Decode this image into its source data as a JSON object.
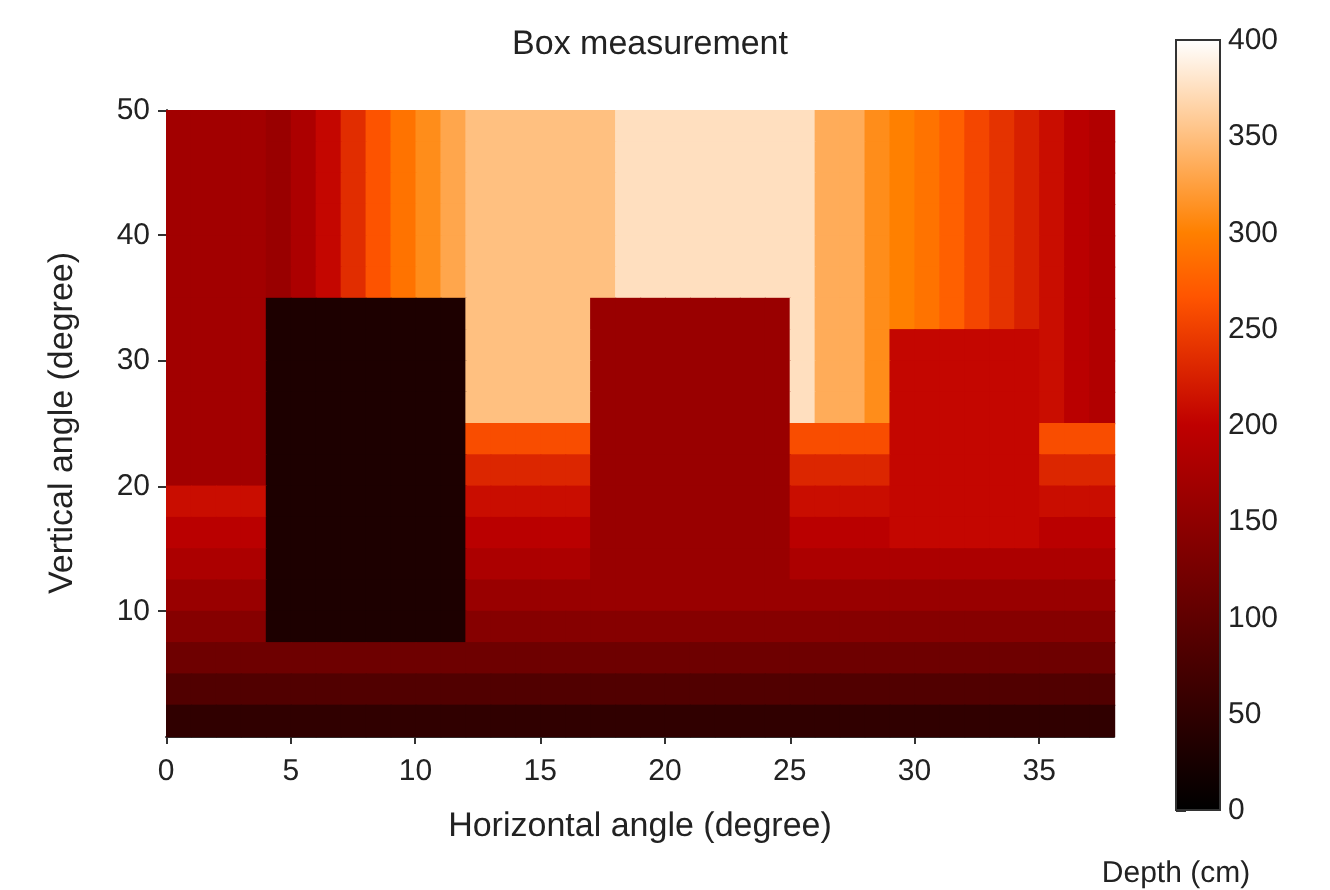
{
  "chart_data": {
    "type": "heatmap",
    "title": "Box measurement",
    "xlabel": "Horizontal angle (degree)",
    "ylabel": "Vertical angle (degree)",
    "clabel": "Depth (cm)",
    "xlim": [
      0,
      38
    ],
    "ylim": [
      0,
      50
    ],
    "xticks": [
      0,
      5,
      10,
      15,
      20,
      25,
      30,
      35
    ],
    "yticks": [
      10,
      20,
      30,
      40,
      50
    ],
    "clim": [
      0,
      400
    ],
    "cticks": [
      0,
      50,
      100,
      150,
      200,
      250,
      300,
      350,
      400
    ],
    "cells": [
      [
        170,
        170,
        170,
        170,
        160,
        180,
        205,
        235,
        265,
        290,
        310,
        330,
        350,
        350,
        350,
        350,
        350,
        350,
        375,
        375,
        375,
        375,
        375,
        375,
        375,
        375,
        335,
        335,
        310,
        300,
        290,
        275,
        255,
        240,
        225,
        210,
        195,
        185
      ],
      [
        170,
        170,
        170,
        170,
        160,
        180,
        205,
        235,
        265,
        290,
        310,
        330,
        350,
        350,
        350,
        350,
        350,
        350,
        375,
        375,
        375,
        375,
        375,
        375,
        375,
        375,
        335,
        335,
        310,
        300,
        290,
        275,
        255,
        240,
        225,
        210,
        195,
        185
      ],
      [
        170,
        170,
        170,
        170,
        160,
        180,
        205,
        235,
        265,
        290,
        310,
        330,
        350,
        350,
        350,
        350,
        350,
        350,
        375,
        375,
        375,
        375,
        375,
        375,
        375,
        375,
        335,
        335,
        310,
        300,
        290,
        275,
        255,
        240,
        225,
        210,
        195,
        185
      ],
      [
        170,
        170,
        170,
        170,
        160,
        180,
        205,
        235,
        265,
        290,
        310,
        330,
        350,
        350,
        350,
        350,
        350,
        350,
        375,
        375,
        375,
        375,
        375,
        375,
        375,
        375,
        335,
        335,
        310,
        300,
        290,
        275,
        255,
        240,
        225,
        210,
        195,
        185
      ],
      [
        170,
        170,
        170,
        170,
        160,
        180,
        205,
        235,
        265,
        290,
        310,
        330,
        350,
        350,
        350,
        350,
        350,
        350,
        375,
        375,
        375,
        375,
        375,
        375,
        375,
        375,
        335,
        335,
        310,
        300,
        290,
        275,
        255,
        240,
        225,
        210,
        195,
        185
      ],
      [
        170,
        170,
        170,
        170,
        160,
        180,
        205,
        235,
        265,
        290,
        310,
        330,
        350,
        350,
        350,
        350,
        350,
        350,
        375,
        375,
        375,
        375,
        375,
        375,
        375,
        375,
        335,
        335,
        310,
        300,
        290,
        275,
        255,
        240,
        225,
        210,
        195,
        185
      ],
      [
        170,
        170,
        170,
        170,
        30,
        30,
        30,
        30,
        30,
        30,
        30,
        30,
        350,
        350,
        350,
        350,
        350,
        160,
        160,
        160,
        160,
        160,
        160,
        160,
        160,
        375,
        335,
        335,
        310,
        300,
        290,
        275,
        255,
        240,
        225,
        210,
        195,
        185
      ],
      [
        170,
        170,
        170,
        170,
        30,
        30,
        30,
        30,
        30,
        30,
        30,
        30,
        350,
        350,
        350,
        350,
        350,
        160,
        160,
        160,
        160,
        160,
        160,
        160,
        160,
        375,
        335,
        335,
        310,
        205,
        205,
        205,
        205,
        205,
        205,
        210,
        195,
        185
      ],
      [
        170,
        170,
        170,
        170,
        30,
        30,
        30,
        30,
        30,
        30,
        30,
        30,
        350,
        350,
        350,
        350,
        350,
        160,
        160,
        160,
        160,
        160,
        160,
        160,
        160,
        375,
        335,
        335,
        310,
        205,
        205,
        205,
        205,
        205,
        205,
        210,
        195,
        185
      ],
      [
        170,
        170,
        170,
        170,
        30,
        30,
        30,
        30,
        30,
        30,
        30,
        30,
        350,
        350,
        350,
        350,
        350,
        160,
        160,
        160,
        160,
        160,
        160,
        160,
        160,
        375,
        335,
        335,
        310,
        205,
        205,
        205,
        205,
        205,
        205,
        210,
        195,
        185
      ],
      [
        170,
        170,
        170,
        170,
        30,
        30,
        30,
        30,
        30,
        30,
        30,
        30,
        260,
        260,
        260,
        260,
        260,
        160,
        160,
        160,
        160,
        160,
        160,
        160,
        160,
        260,
        260,
        260,
        260,
        205,
        205,
        205,
        205,
        205,
        205,
        260,
        260,
        260
      ],
      [
        170,
        170,
        170,
        170,
        30,
        30,
        30,
        30,
        30,
        30,
        30,
        30,
        230,
        230,
        230,
        230,
        230,
        160,
        160,
        160,
        160,
        160,
        160,
        160,
        160,
        230,
        230,
        230,
        230,
        205,
        205,
        205,
        205,
        205,
        205,
        230,
        230,
        230
      ],
      [
        210,
        210,
        210,
        210,
        30,
        30,
        30,
        30,
        30,
        30,
        30,
        30,
        210,
        210,
        210,
        210,
        210,
        160,
        160,
        160,
        160,
        160,
        160,
        160,
        160,
        210,
        210,
        210,
        210,
        205,
        205,
        205,
        205,
        205,
        205,
        210,
        210,
        210
      ],
      [
        195,
        195,
        195,
        195,
        30,
        30,
        30,
        30,
        30,
        30,
        30,
        30,
        195,
        195,
        195,
        195,
        195,
        160,
        160,
        160,
        160,
        160,
        160,
        160,
        160,
        195,
        195,
        195,
        195,
        205,
        205,
        205,
        205,
        205,
        205,
        195,
        195,
        195
      ],
      [
        180,
        180,
        180,
        180,
        30,
        30,
        30,
        30,
        30,
        30,
        30,
        30,
        180,
        180,
        180,
        180,
        180,
        160,
        160,
        160,
        160,
        160,
        160,
        160,
        160,
        180,
        180,
        180,
        180,
        180,
        180,
        180,
        180,
        180,
        180,
        180,
        180,
        180
      ],
      [
        160,
        160,
        160,
        160,
        30,
        30,
        30,
        30,
        30,
        30,
        30,
        30,
        160,
        160,
        160,
        160,
        160,
        160,
        160,
        160,
        160,
        160,
        160,
        160,
        160,
        160,
        160,
        160,
        160,
        160,
        160,
        160,
        160,
        160,
        160,
        160,
        160,
        160
      ],
      [
        140,
        140,
        140,
        140,
        30,
        30,
        30,
        30,
        30,
        30,
        30,
        30,
        140,
        140,
        140,
        140,
        140,
        140,
        140,
        140,
        140,
        140,
        140,
        140,
        140,
        140,
        140,
        140,
        140,
        140,
        140,
        140,
        140,
        140,
        140,
        140,
        140,
        140
      ],
      [
        115,
        115,
        115,
        115,
        115,
        115,
        115,
        115,
        115,
        115,
        115,
        115,
        115,
        115,
        115,
        115,
        115,
        115,
        115,
        115,
        115,
        115,
        115,
        115,
        115,
        115,
        115,
        115,
        115,
        115,
        115,
        115,
        115,
        115,
        115,
        115,
        115,
        115
      ],
      [
        85,
        85,
        85,
        85,
        85,
        85,
        85,
        85,
        85,
        85,
        85,
        85,
        85,
        85,
        85,
        85,
        85,
        85,
        85,
        85,
        85,
        85,
        85,
        85,
        85,
        85,
        85,
        85,
        85,
        85,
        85,
        85,
        85,
        85,
        85,
        85,
        85,
        85
      ],
      [
        50,
        50,
        50,
        50,
        50,
        50,
        50,
        50,
        50,
        50,
        50,
        50,
        50,
        50,
        50,
        50,
        50,
        50,
        50,
        50,
        50,
        50,
        50,
        50,
        50,
        50,
        50,
        50,
        50,
        50,
        50,
        50,
        50,
        50,
        50,
        50,
        50,
        50
      ]
    ]
  }
}
